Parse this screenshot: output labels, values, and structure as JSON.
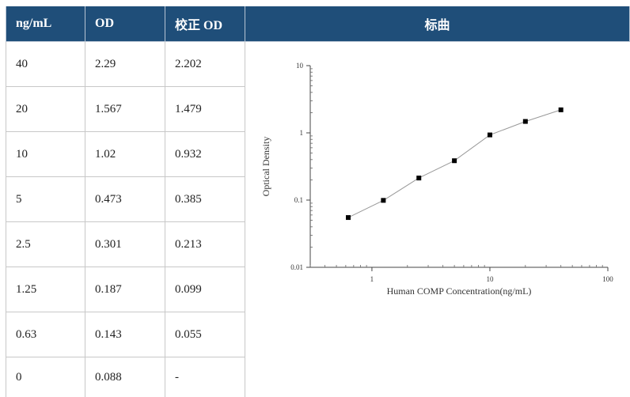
{
  "table": {
    "headers": [
      "ng/mL",
      "OD",
      "校正 OD",
      "标曲"
    ],
    "rows": [
      [
        "40",
        "2.29",
        "2.202"
      ],
      [
        "20",
        "1.567",
        "1.479"
      ],
      [
        "10",
        "1.02",
        "0.932"
      ],
      [
        "5",
        "0.473",
        "0.385"
      ],
      [
        "2.5",
        "0.301",
        "0.213"
      ],
      [
        "1.25",
        "0.187",
        "0.099"
      ],
      [
        "0.63",
        "0.143",
        "0.055"
      ],
      [
        "0",
        "0.088",
        "-"
      ]
    ]
  },
  "chart_data": {
    "type": "line",
    "xlabel": "Human COMP Concentration(ng/mL)",
    "ylabel": "Optical Density",
    "xscale": "log",
    "yscale": "log",
    "xlim": [
      0.3,
      100
    ],
    "ylim": [
      0.01,
      10
    ],
    "xticks": [
      "1",
      "10",
      "100"
    ],
    "xtick_values": [
      1,
      10,
      100
    ],
    "yticks": [
      "10",
      "1",
      "0.1",
      "0.01"
    ],
    "ytick_values": [
      10,
      1,
      0.1,
      0.01
    ],
    "grid": false,
    "markers": "square",
    "line_color": "#999999",
    "marker_color": "#000000",
    "series": [
      {
        "x": [
          0.63,
          1.25,
          2.5,
          5,
          10,
          20,
          40
        ],
        "y": [
          0.055,
          0.099,
          0.213,
          0.385,
          0.932,
          1.479,
          2.202
        ]
      }
    ]
  }
}
